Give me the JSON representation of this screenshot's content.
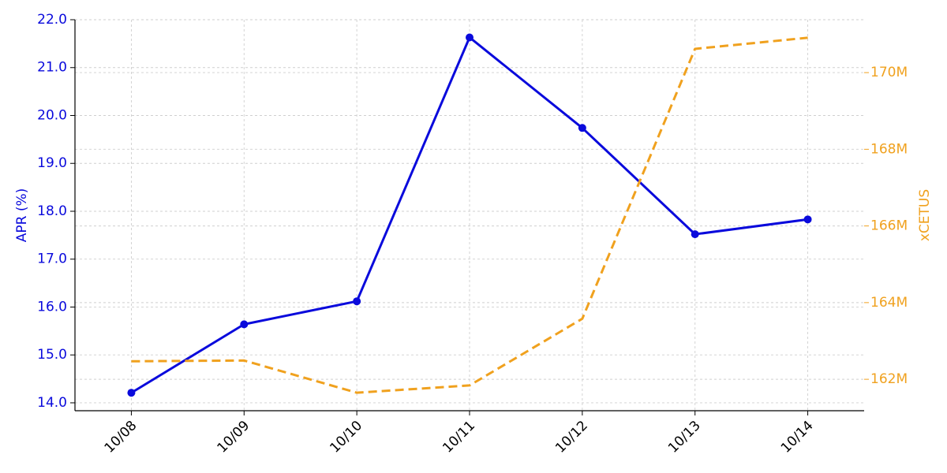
{
  "chart_data": {
    "type": "line",
    "categories": [
      "10/08",
      "10/09",
      "10/10",
      "10/11",
      "10/12",
      "10/13",
      "10/14"
    ],
    "ylabel": "APR (%)",
    "y2label": "xCETUS",
    "series": [
      {
        "color": "#0a0adc",
        "style": "solid",
        "markers": true,
        "values": [
          14.21,
          15.64,
          16.12,
          21.63,
          19.74,
          17.52,
          17.83
        ]
      },
      {
        "color": "#f0a11e",
        "style": "dashed",
        "markers": false,
        "axis": "y2",
        "values": [
          162470000,
          162490000,
          161650000,
          161840000,
          163580000,
          170620000,
          170910000
        ]
      }
    ],
    "ylim": [
      13.835,
      22.0
    ],
    "yticks": [
      {
        "value": 14,
        "label": "14.0"
      },
      {
        "value": 15,
        "label": "15.0"
      },
      {
        "value": 16,
        "label": "16.0"
      },
      {
        "value": 17,
        "label": "17.0"
      },
      {
        "value": 18,
        "label": "18.0"
      },
      {
        "value": 19,
        "label": "19.0"
      },
      {
        "value": 20,
        "label": "20.0"
      },
      {
        "value": 21,
        "label": "21.0"
      },
      {
        "value": 22,
        "label": "22.0"
      }
    ],
    "y2lim": [
      161180000,
      171380000
    ],
    "y2ticks": [
      {
        "value": 162000000,
        "label": "162M"
      },
      {
        "value": 164000000,
        "label": "164M"
      },
      {
        "value": 166000000,
        "label": "166M"
      },
      {
        "value": 168000000,
        "label": "168M"
      },
      {
        "value": 170000000,
        "label": "170M"
      }
    ],
    "grid": true
  }
}
